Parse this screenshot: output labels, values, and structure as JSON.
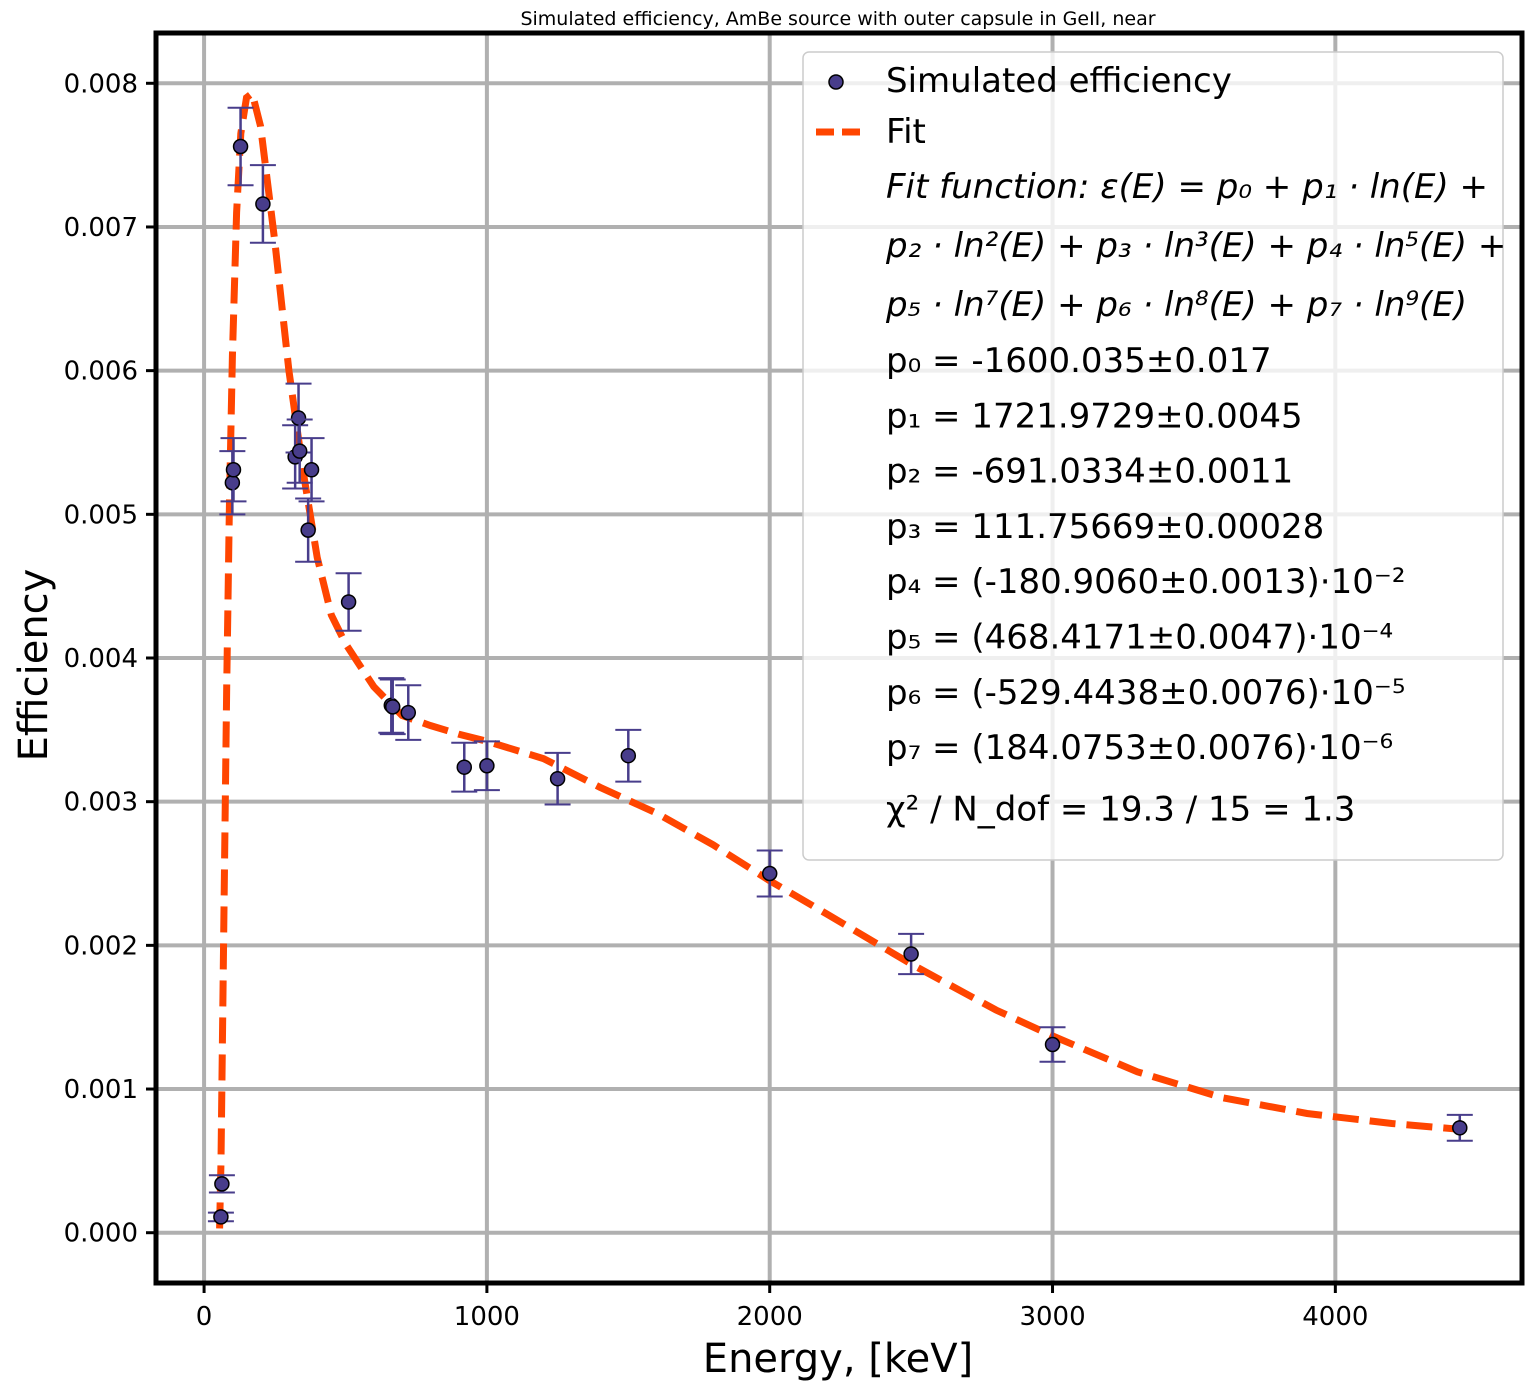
{
  "chart_data": {
    "type": "scatter",
    "title": "Simulated efficiency, AmBe source with outer capsule in GeII, near",
    "xlabel": "Energy, [keV]",
    "ylabel": "Efficiency",
    "xlim": [
      -170,
      4660
    ],
    "ylim": [
      -0.00035,
      0.00835
    ],
    "grid": true,
    "legend_position": "top-right",
    "x_ticks": [
      0,
      1000,
      2000,
      3000,
      4000
    ],
    "x_tick_labels": [
      "0",
      "1000",
      "2000",
      "3000",
      "4000"
    ],
    "y_ticks": [
      0.0,
      0.001,
      0.002,
      0.003,
      0.004,
      0.005,
      0.006,
      0.007,
      0.008
    ],
    "y_tick_labels": [
      "0.000",
      "0.001",
      "0.002",
      "0.003",
      "0.004",
      "0.005",
      "0.006",
      "0.007",
      "0.008"
    ],
    "series": [
      {
        "name": "Simulated efficiency",
        "color": "#483d8b",
        "points": [
          {
            "x": 59.5,
            "y": 0.00011,
            "err": 3e-05
          },
          {
            "x": 63,
            "y": 0.00034,
            "err": 6e-05
          },
          {
            "x": 100,
            "y": 0.00522,
            "err": 0.00022
          },
          {
            "x": 104,
            "y": 0.00531,
            "err": 0.00022
          },
          {
            "x": 129,
            "y": 0.00756,
            "err": 0.00027
          },
          {
            "x": 208,
            "y": 0.00716,
            "err": 0.00027
          },
          {
            "x": 322,
            "y": 0.0054,
            "err": 0.00022
          },
          {
            "x": 334,
            "y": 0.00567,
            "err": 0.00024
          },
          {
            "x": 338,
            "y": 0.00544,
            "err": 0.00022
          },
          {
            "x": 368,
            "y": 0.00489,
            "err": 0.00022
          },
          {
            "x": 380,
            "y": 0.00531,
            "err": 0.00022
          },
          {
            "x": 511,
            "y": 0.00439,
            "err": 0.0002
          },
          {
            "x": 662,
            "y": 0.00367,
            "err": 0.00019
          },
          {
            "x": 667,
            "y": 0.00366,
            "err": 0.00019
          },
          {
            "x": 722,
            "y": 0.00362,
            "err": 0.00019
          },
          {
            "x": 920,
            "y": 0.00324,
            "err": 0.00017
          },
          {
            "x": 1000,
            "y": 0.00325,
            "err": 0.00017
          },
          {
            "x": 1250,
            "y": 0.00316,
            "err": 0.00018
          },
          {
            "x": 1500,
            "y": 0.00332,
            "err": 0.00018
          },
          {
            "x": 2000,
            "y": 0.0025,
            "err": 0.00016
          },
          {
            "x": 2500,
            "y": 0.00194,
            "err": 0.00014
          },
          {
            "x": 3000,
            "y": 0.00131,
            "err": 0.00012
          },
          {
            "x": 4440,
            "y": 0.00073,
            "err": 9e-05
          }
        ]
      },
      {
        "name": "Fit",
        "color": "#ff4500",
        "style": "dashed",
        "points": [
          {
            "x": 55,
            "y": 3e-05
          },
          {
            "x": 60,
            "y": 0.0005
          },
          {
            "x": 70,
            "y": 0.0022
          },
          {
            "x": 80,
            "y": 0.0038
          },
          {
            "x": 90,
            "y": 0.0051
          },
          {
            "x": 100,
            "y": 0.0061
          },
          {
            "x": 115,
            "y": 0.0071
          },
          {
            "x": 130,
            "y": 0.00765
          },
          {
            "x": 150,
            "y": 0.0079
          },
          {
            "x": 170,
            "y": 0.00793
          },
          {
            "x": 200,
            "y": 0.0077
          },
          {
            "x": 250,
            "y": 0.0069
          },
          {
            "x": 300,
            "y": 0.006
          },
          {
            "x": 350,
            "y": 0.0053
          },
          {
            "x": 400,
            "y": 0.0047
          },
          {
            "x": 450,
            "y": 0.0043
          },
          {
            "x": 500,
            "y": 0.0041
          },
          {
            "x": 550,
            "y": 0.00395
          },
          {
            "x": 600,
            "y": 0.0038
          },
          {
            "x": 700,
            "y": 0.0036
          },
          {
            "x": 800,
            "y": 0.00353
          },
          {
            "x": 900,
            "y": 0.00347
          },
          {
            "x": 1000,
            "y": 0.00342
          },
          {
            "x": 1200,
            "y": 0.0033
          },
          {
            "x": 1400,
            "y": 0.0031
          },
          {
            "x": 1600,
            "y": 0.00292
          },
          {
            "x": 1800,
            "y": 0.0027
          },
          {
            "x": 2000,
            "y": 0.00245
          },
          {
            "x": 2200,
            "y": 0.00222
          },
          {
            "x": 2500,
            "y": 0.00187
          },
          {
            "x": 2800,
            "y": 0.00155
          },
          {
            "x": 3000,
            "y": 0.00137
          },
          {
            "x": 3300,
            "y": 0.00112
          },
          {
            "x": 3600,
            "y": 0.00094
          },
          {
            "x": 3900,
            "y": 0.00083
          },
          {
            "x": 4200,
            "y": 0.00076
          },
          {
            "x": 4440,
            "y": 0.00072
          }
        ]
      }
    ],
    "legend": {
      "entries": [
        {
          "label": "Simulated efficiency",
          "marker": "circle"
        },
        {
          "label": "Fit",
          "marker": "dashed-line"
        }
      ],
      "fit_function_lines": [
        "Fit function: ε(E) = p₀ + p₁ · ln(E) +",
        "p₂ · ln²(E) + p₃ · ln³(E) + p₄ · ln⁵(E) +",
        "p₅ · ln⁷(E) + p₆ · ln⁸(E) + p₇ · ln⁹(E)"
      ],
      "parameters": [
        "p₀ = -1600.035±0.017",
        "p₁ = 1721.9729±0.0045",
        "p₂ = -691.0334±0.0011",
        "p₃ = 111.75669±0.00028",
        "p₄ = (-180.9060±0.0013)·10⁻²",
        "p₅ = (468.4171±0.0047)·10⁻⁴",
        "p₆ = (-529.4438±0.0076)·10⁻⁵",
        "p₇ = (184.0753±0.0076)·10⁻⁶"
      ],
      "chi2": "χ² / N_dof = 19.3 / 15 = 1.3"
    }
  }
}
